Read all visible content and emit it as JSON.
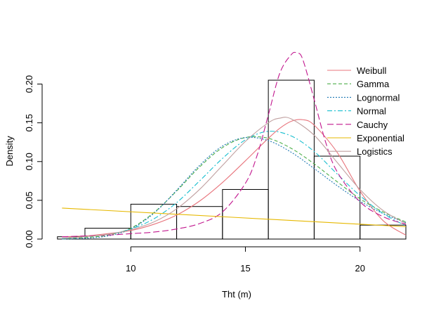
{
  "chart_data": {
    "type": "histogram",
    "title": "",
    "xlabel": "Tht (m)",
    "ylabel": "Density",
    "xlim": [
      6.5,
      22
    ],
    "ylim": [
      0,
      0.225
    ],
    "x_ticks": [
      10,
      15,
      20
    ],
    "y_ticks": [
      0.0,
      0.05,
      0.1,
      0.15,
      0.2
    ],
    "y_tick_labels": [
      "0.00",
      "0.05",
      "0.10",
      "0.15",
      "0.20"
    ],
    "legend_position": "top-right",
    "histogram": {
      "bins": [
        {
          "x0": 6,
          "x1": 8,
          "density": 0.003
        },
        {
          "x0": 8,
          "x1": 10,
          "density": 0.014
        },
        {
          "x0": 10,
          "x1": 12,
          "density": 0.045
        },
        {
          "x0": 12,
          "x1": 14,
          "density": 0.042
        },
        {
          "x0": 14,
          "x1": 16,
          "density": 0.064
        },
        {
          "x0": 16,
          "x1": 18,
          "density": 0.205
        },
        {
          "x0": 18,
          "x1": 20,
          "density": 0.107
        },
        {
          "x0": 20,
          "x1": 22,
          "density": 0.018
        }
      ]
    },
    "series": [
      {
        "name": "Weibull",
        "color": "#E8747C",
        "dash": "",
        "x": [
          7,
          8,
          9,
          10,
          11,
          12,
          13,
          14,
          15,
          16,
          16.5,
          17,
          17.5,
          18,
          19,
          20,
          21,
          22
        ],
        "y": [
          0.003,
          0.004,
          0.007,
          0.011,
          0.019,
          0.031,
          0.049,
          0.073,
          0.101,
          0.13,
          0.143,
          0.152,
          0.154,
          0.147,
          0.112,
          0.062,
          0.024,
          0.005
        ]
      },
      {
        "name": "Gamma",
        "color": "#4DAF4A",
        "dash": "5,3",
        "x": [
          7,
          8,
          9,
          10,
          11,
          12,
          13,
          14,
          15,
          16,
          17,
          18,
          19,
          20,
          21,
          22
        ],
        "y": [
          0.0,
          0.002,
          0.005,
          0.014,
          0.034,
          0.062,
          0.093,
          0.118,
          0.131,
          0.13,
          0.117,
          0.097,
          0.074,
          0.052,
          0.035,
          0.022
        ]
      },
      {
        "name": "Lognormal",
        "color": "#1F78B4",
        "dash": "2,2",
        "x": [
          7,
          8,
          9,
          10,
          11,
          12,
          13,
          14,
          15,
          16,
          17,
          18,
          19,
          20,
          21,
          22
        ],
        "y": [
          0.0,
          0.001,
          0.004,
          0.013,
          0.033,
          0.063,
          0.095,
          0.12,
          0.131,
          0.127,
          0.112,
          0.091,
          0.069,
          0.049,
          0.033,
          0.021
        ]
      },
      {
        "name": "Normal",
        "color": "#17BECF",
        "dash": "7,3,2,3",
        "x": [
          7,
          8,
          9,
          10,
          11,
          12,
          13,
          14,
          15,
          16,
          17,
          18,
          19,
          20,
          21,
          22
        ],
        "y": [
          0.001,
          0.003,
          0.006,
          0.013,
          0.026,
          0.047,
          0.075,
          0.104,
          0.128,
          0.139,
          0.133,
          0.113,
          0.084,
          0.056,
          0.033,
          0.017
        ]
      },
      {
        "name": "Cauchy",
        "color": "#C2188F",
        "dash": "9,4",
        "x": [
          7,
          8,
          9,
          10,
          11,
          12,
          13,
          14,
          15,
          15.5,
          16,
          16.5,
          17,
          17.25,
          17.5,
          18,
          18.5,
          19,
          20,
          21,
          22
        ],
        "y": [
          0.003,
          0.004,
          0.005,
          0.007,
          0.009,
          0.013,
          0.02,
          0.035,
          0.072,
          0.107,
          0.16,
          0.214,
          0.238,
          0.24,
          0.232,
          0.18,
          0.125,
          0.087,
          0.048,
          0.029,
          0.019
        ]
      },
      {
        "name": "Exponential",
        "color": "#E6B800",
        "dash": "",
        "x": [
          7,
          22
        ],
        "y": [
          0.04,
          0.016
        ]
      },
      {
        "name": "Logistics",
        "color": "#C0A0A0",
        "dash": "",
        "x": [
          7,
          8,
          9,
          10,
          11,
          12,
          13,
          14,
          15,
          16,
          16.5,
          17,
          18,
          19,
          20,
          21,
          22
        ],
        "y": [
          0.001,
          0.003,
          0.006,
          0.012,
          0.022,
          0.039,
          0.064,
          0.095,
          0.126,
          0.15,
          0.156,
          0.155,
          0.134,
          0.099,
          0.064,
          0.037,
          0.02
        ]
      }
    ]
  }
}
